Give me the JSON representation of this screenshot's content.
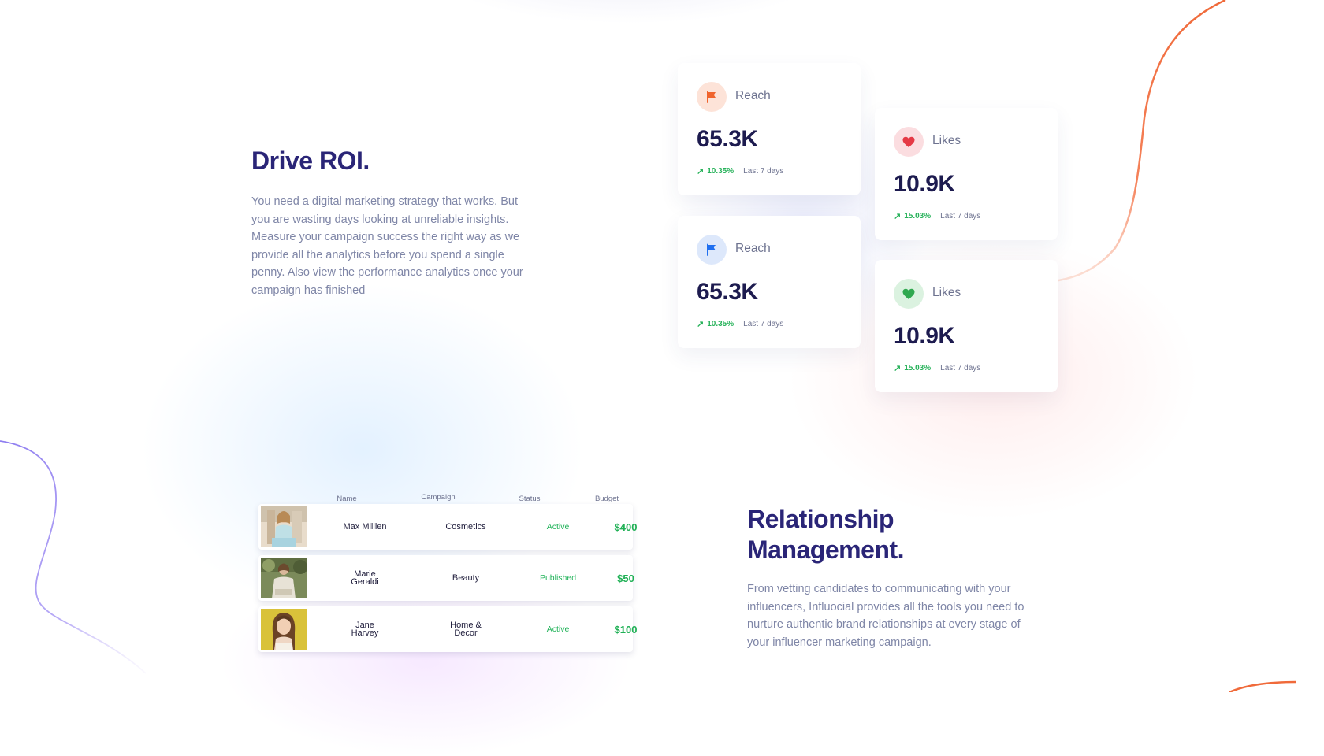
{
  "drive_roi": {
    "title": "Drive ROI.",
    "body": "You need a digital marketing strategy that works. But you are wasting days looking at unreliable insights. Measure your campaign success the right way as we provide all the analytics before you spend a single penny. Also view the performance analytics once your campaign has finished"
  },
  "stats": [
    {
      "label": "Reach",
      "value": "65.3K",
      "change": "10.35%",
      "period": "Last 7 days",
      "icon": "flag-icon",
      "icon_color": "#f0642d",
      "icon_bg": "#fde3d8"
    },
    {
      "label": "Likes",
      "value": "10.9K",
      "change": "15.03%",
      "period": "Last 7 days",
      "icon": "heart-icon",
      "icon_color": "#e53945",
      "icon_bg": "#fbdde0"
    },
    {
      "label": "Reach",
      "value": "65.3K",
      "change": "10.35%",
      "period": "Last 7 days",
      "icon": "flag-icon",
      "icon_color": "#1f6ff0",
      "icon_bg": "#dde8fb"
    },
    {
      "label": "Likes",
      "value": "10.9K",
      "change": "15.03%",
      "period": "Last 7 days",
      "icon": "heart-icon",
      "icon_color": "#2fa84f",
      "icon_bg": "#dbf2e0"
    }
  ],
  "table": {
    "headers": {
      "name": "Name",
      "campaign": "Campaign",
      "status": "Status",
      "budget": "Budget"
    },
    "rows": [
      {
        "name": "Max Millien",
        "campaign": "Cosmetics",
        "status": "Active",
        "budget": "$400"
      },
      {
        "name": "Marie Geraldi",
        "campaign": "Beauty",
        "status": "Published",
        "budget": "$50"
      },
      {
        "name": "Jane Harvey",
        "campaign": "Home & Decor",
        "status": "Active",
        "budget": "$100"
      }
    ]
  },
  "relationship": {
    "title": "Relationship Management.",
    "body": "From vetting candidates to communicating with your influencers, Influocial provides all the tools you need to nurture authentic brand relationships at every stage of your influencer marketing campaign."
  },
  "colors": {
    "heading": "#2a2577",
    "body_text": "#7f86a7",
    "accent_green": "#27b25a",
    "curve_orange": "#f06a3a",
    "curve_purple": "#8d7cf0"
  }
}
